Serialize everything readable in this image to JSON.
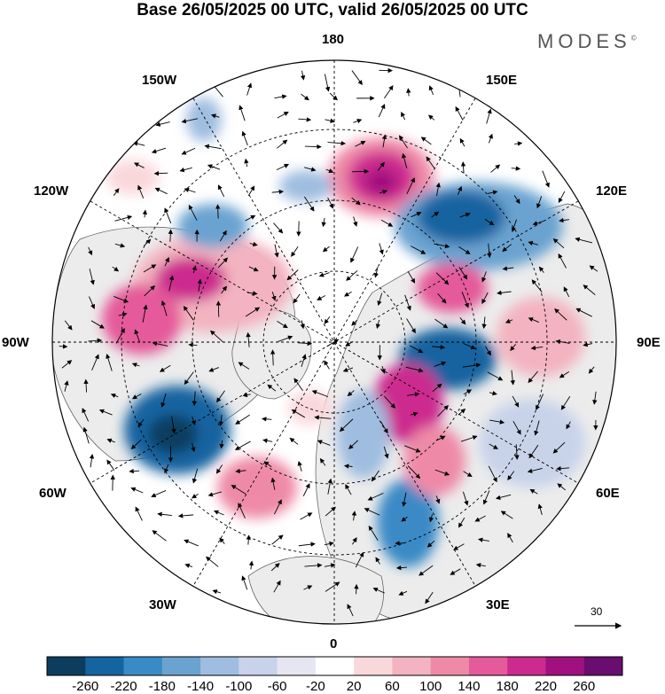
{
  "title": "Base 26/05/2025 00 UTC, valid 26/05/2025 00 UTC",
  "brand": {
    "text": "MODES",
    "mark": "©"
  },
  "longitude_labels": {
    "lon_180": "180",
    "lon_150e": "150E",
    "lon_120e": "120E",
    "lon_90e": "90E",
    "lon_60e": "60E",
    "lon_30e": "30E",
    "lon_0": "0",
    "lon_30w": "30W",
    "lon_60w": "60W",
    "lon_90w": "90W",
    "lon_120w": "120W",
    "lon_150w": "150W"
  },
  "vector_scale": {
    "label": "30"
  },
  "colorbar": {
    "colors": [
      "#0c3d5e",
      "#1464a0",
      "#3a8ac6",
      "#6aa3d0",
      "#9fbde0",
      "#c8d3ea",
      "#e6e6f2",
      "#ffffff",
      "#f9d8dc",
      "#f3b3c0",
      "#ee8aa8",
      "#e55a9a",
      "#cc2a8e",
      "#a0117f",
      "#6a0d70"
    ],
    "labels": [
      "-260",
      "-220",
      "-180",
      "-140",
      "-100",
      "-60",
      "-20",
      "20",
      "60",
      "100",
      "140",
      "180",
      "220",
      "260"
    ]
  },
  "map": {
    "ocean_color": "#ffffff",
    "land_color": "#ededed"
  }
}
